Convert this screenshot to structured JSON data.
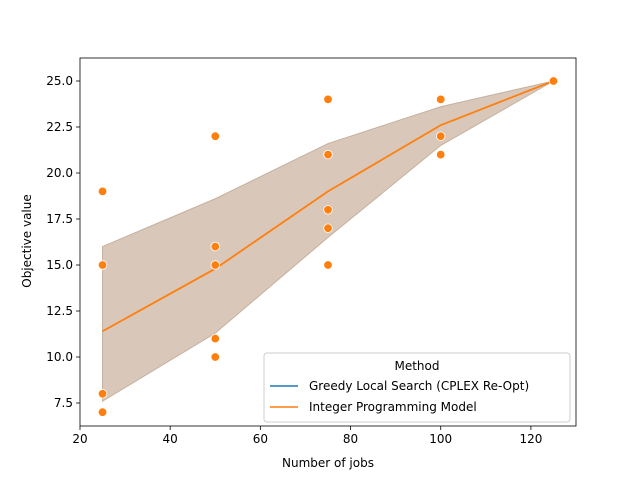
{
  "chart_data": {
    "type": "line",
    "title": "",
    "xlabel": "Number of jobs",
    "ylabel": "Objective value",
    "xlim": [
      20,
      130
    ],
    "ylim": [
      6.25,
      26.25
    ],
    "xticks": [
      20,
      40,
      60,
      80,
      100,
      120
    ],
    "xtick_labels": [
      "20",
      "40",
      "60",
      "80",
      "100",
      "120"
    ],
    "yticks": [
      7.5,
      10,
      12.5,
      15,
      17.5,
      20,
      22.5,
      25
    ],
    "ytick_labels": [
      "7.5",
      "10.0",
      "12.5",
      "15.0",
      "17.5",
      "20.0",
      "22.5",
      "25.0"
    ],
    "grid": false,
    "legend": {
      "title": "Method",
      "placement": "lower-right",
      "entries": [
        {
          "name": "Greedy Local Search (CPLEX Re-Opt)",
          "color": "#1f77b4"
        },
        {
          "name": "Integer Programming Model",
          "color": "#ff7f0e"
        }
      ]
    },
    "series": [
      {
        "name": "Integer Programming Model",
        "color": "#ff7f0e",
        "mean_line": {
          "x": [
            25,
            50,
            75,
            100,
            125
          ],
          "y": [
            11.4,
            14.8,
            19.0,
            22.6,
            25.0
          ]
        },
        "ci_band": {
          "x": [
            25,
            50,
            75,
            100,
            125
          ],
          "lower": [
            7.6,
            11.3,
            16.5,
            21.5,
            25.0
          ],
          "upper": [
            16.0,
            18.6,
            21.6,
            23.6,
            25.0
          ],
          "color": "#d5c2b3"
        },
        "points": [
          {
            "x": 25,
            "y": 19
          },
          {
            "x": 25,
            "y": 15
          },
          {
            "x": 25,
            "y": 8
          },
          {
            "x": 25,
            "y": 7
          },
          {
            "x": 50,
            "y": 22
          },
          {
            "x": 50,
            "y": 16
          },
          {
            "x": 50,
            "y": 15
          },
          {
            "x": 50,
            "y": 11
          },
          {
            "x": 50,
            "y": 10
          },
          {
            "x": 75,
            "y": 24
          },
          {
            "x": 75,
            "y": 21
          },
          {
            "x": 75,
            "y": 18
          },
          {
            "x": 75,
            "y": 17
          },
          {
            "x": 75,
            "y": 15
          },
          {
            "x": 100,
            "y": 24
          },
          {
            "x": 100,
            "y": 22
          },
          {
            "x": 100,
            "y": 21
          },
          {
            "x": 125,
            "y": 25
          }
        ]
      }
    ]
  }
}
